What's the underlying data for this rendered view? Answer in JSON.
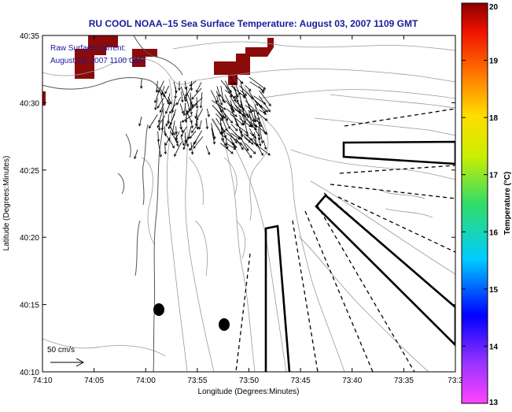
{
  "title": "RU COOL  NOAA–15  Sea Surface Temperature:  August 03, 2007 1109 GMT",
  "annotation": {
    "line1": "Raw Surface Current:",
    "line2": "August 03, 2007 1100 GMT"
  },
  "axes": {
    "xlabel": "Longitude (Degrees:Minutes)",
    "ylabel": "Latitude (Degrees:Minutes)",
    "xticks": [
      "74:10",
      "74:05",
      "74:00",
      "73:55",
      "73:50",
      "73:45",
      "73:40",
      "73:35",
      "73:3"
    ],
    "yticks": [
      "40:35",
      "40:30",
      "40:25",
      "40:20",
      "40:15",
      "40:10"
    ]
  },
  "scale_label": "50 cm/s",
  "colorbar": {
    "label": "Temperature (°C)",
    "ticks": [
      "20",
      "19",
      "18",
      "17",
      "16",
      "15",
      "14",
      "13"
    ],
    "min": 13,
    "max": 20
  },
  "colors": {
    "title": "#1a1a9a",
    "annotation": "#1a1a9a",
    "sst_patch": "#8b0a0a",
    "contour": "#9a9a9a",
    "coast": "#555555"
  }
}
